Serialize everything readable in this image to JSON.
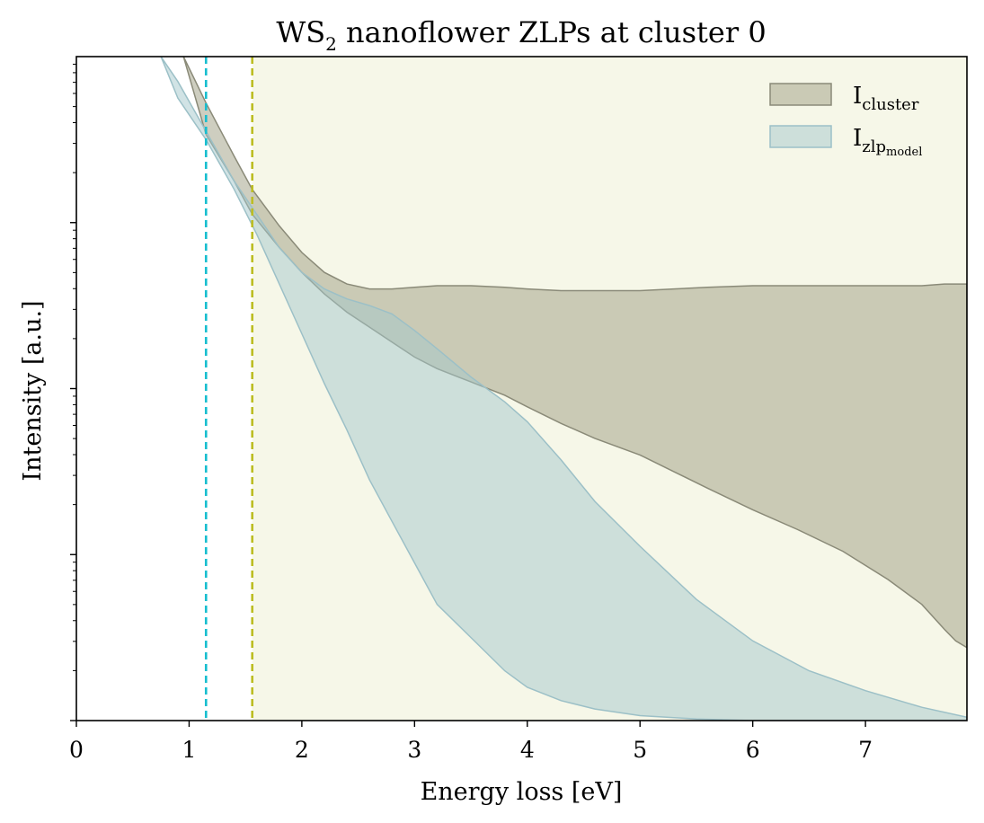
{
  "chart_data": {
    "type": "area",
    "title_main": "WS",
    "title_sub": "2",
    "title_rest": " nanoflower  ZLPs at cluster 0",
    "xlabel": "Energy loss [eV]",
    "ylabel": "Intensity [a.u.]",
    "xlim": [
      0,
      7.9
    ],
    "ylim_log10": [
      -1.0,
      3.0
    ],
    "y_scale": "log",
    "x_ticks": [
      0,
      1,
      2,
      3,
      4,
      5,
      6,
      7
    ],
    "y_major_ticks_log10": [
      0,
      1,
      2
    ],
    "grid": false,
    "legend_position": "top-right",
    "vlines": [
      {
        "x": 1.15,
        "color": "#17becf",
        "style": "dashed"
      },
      {
        "x": 1.56,
        "color": "#bcbd22",
        "style": "dashed"
      }
    ],
    "shaded_region": {
      "x_from": 1.56,
      "x_to": 7.9,
      "color": "#f6f7e8"
    },
    "series": [
      {
        "name": "I",
        "name_sub": "cluster",
        "fill": "#9e9e82",
        "edge": "#8a8a78",
        "x": [
          0.95,
          1.15,
          1.4,
          1.56,
          1.8,
          2.0,
          2.2,
          2.4,
          2.6,
          2.8,
          3.0,
          3.2,
          3.5,
          3.8,
          4.0,
          4.3,
          4.6,
          5.0,
          5.3,
          5.6,
          6.0,
          6.4,
          6.8,
          7.2,
          7.5,
          7.7,
          7.8,
          7.9
        ],
        "upper": [
          3.0,
          2.72,
          2.4,
          2.2,
          1.98,
          1.82,
          1.7,
          1.63,
          1.6,
          1.6,
          1.61,
          1.62,
          1.62,
          1.61,
          1.6,
          1.59,
          1.59,
          1.59,
          1.6,
          1.61,
          1.62,
          1.62,
          1.62,
          1.62,
          1.62,
          1.63,
          1.63,
          1.63
        ],
        "lower": [
          3.0,
          2.53,
          2.25,
          2.05,
          1.85,
          1.7,
          1.57,
          1.46,
          1.37,
          1.28,
          1.19,
          1.12,
          1.04,
          0.96,
          0.89,
          0.79,
          0.7,
          0.6,
          0.5,
          0.4,
          0.27,
          0.15,
          0.02,
          -0.15,
          -0.3,
          -0.45,
          -0.52,
          -0.56
        ]
      },
      {
        "name": "I",
        "name_sub": "zlp",
        "name_subsub": "model",
        "fill": "#a3c8cb",
        "edge": "#9cc0c7",
        "x": [
          0.75,
          0.9,
          1.15,
          1.4,
          1.6,
          1.8,
          2.0,
          2.2,
          2.4,
          2.6,
          2.8,
          3.0,
          3.2,
          3.5,
          3.8,
          4.0,
          4.3,
          4.6,
          5.0,
          5.5,
          6.0,
          6.5,
          7.0,
          7.5,
          7.9
        ],
        "upper": [
          3.0,
          2.85,
          2.55,
          2.25,
          2.05,
          1.85,
          1.7,
          1.6,
          1.54,
          1.5,
          1.45,
          1.35,
          1.24,
          1.07,
          0.92,
          0.8,
          0.57,
          0.32,
          0.05,
          -0.27,
          -0.52,
          -0.7,
          -0.82,
          -0.92,
          -0.98
        ],
        "lower": [
          3.0,
          2.75,
          2.5,
          2.2,
          1.93,
          1.63,
          1.33,
          1.03,
          0.75,
          0.45,
          0.2,
          -0.05,
          -0.3,
          -0.5,
          -0.7,
          -0.8,
          -0.88,
          -0.93,
          -0.97,
          -0.99,
          -1.0,
          -1.0,
          -1.0,
          -1.0,
          -1.0
        ]
      }
    ]
  }
}
